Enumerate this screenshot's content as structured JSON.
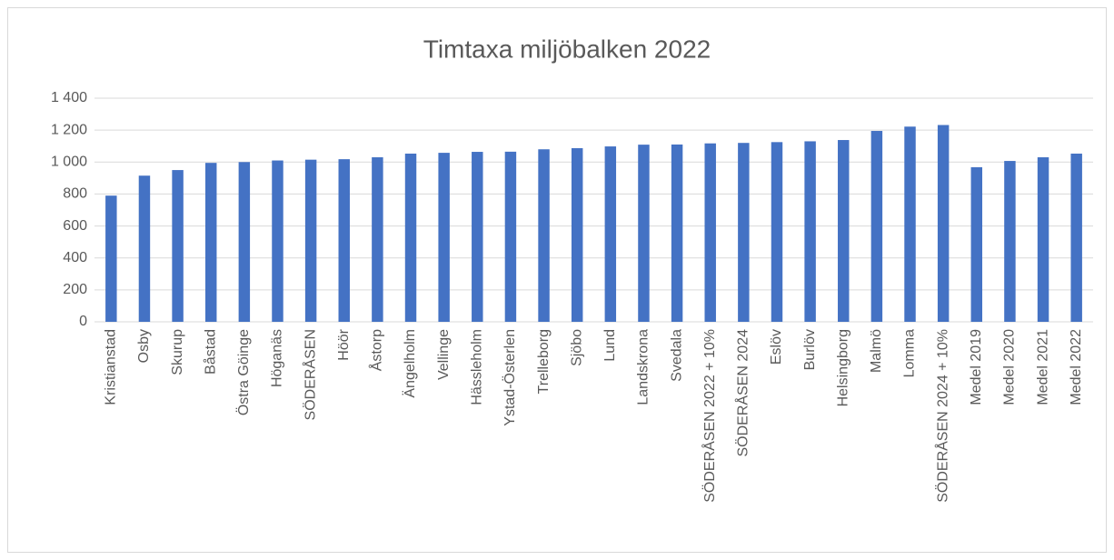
{
  "chart_data": {
    "type": "bar",
    "title": "Timtaxa miljöbalken 2022",
    "categories": [
      "Kristianstad",
      "Osby",
      "Skurup",
      "Båstad",
      "Östra Göinge",
      "Höganäs",
      "SÖDERÅSEN",
      "Höör",
      "Åstorp",
      "Ängelholm",
      "Vellinge",
      "Hässleholm",
      "Ystad-Österlen",
      "Trelleborg",
      "Sjöbo",
      "Lund",
      "Landskrona",
      "Svedala",
      "SÖDERÅSEN 2022 + 10%",
      "SÖDERÅSEN 2024",
      "Eslöv",
      "Burlöv",
      "Helsingborg",
      "Malmö",
      "Lomma",
      "SÖDERÅSEN 2024 + 10%",
      "Medel 2019",
      "Medel 2020",
      "Medel 2021",
      "Medel 2022"
    ],
    "values": [
      790,
      915,
      950,
      995,
      1000,
      1010,
      1015,
      1018,
      1030,
      1053,
      1058,
      1064,
      1065,
      1080,
      1087,
      1098,
      1109,
      1110,
      1117,
      1120,
      1125,
      1130,
      1138,
      1195,
      1222,
      1232,
      968,
      1007,
      1030,
      1053
    ],
    "color": "#4472c4",
    "ylim": [
      0,
      1400
    ],
    "yticks": [
      0,
      200,
      400,
      600,
      800,
      {
        "value": 1000,
        "label": "1 000"
      },
      {
        "value": 1200,
        "label": "1 200"
      },
      {
        "value": 1400,
        "label": "1 400"
      }
    ],
    "grid": true
  }
}
